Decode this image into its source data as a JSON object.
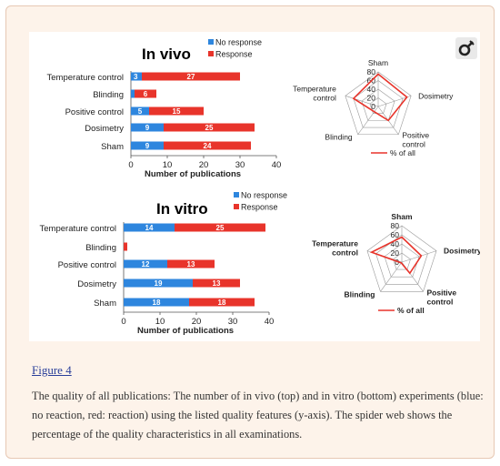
{
  "figure_link": "Figure 4",
  "caption": "The quality of all publications: The number of in vivo (top) and in vitro (bottom) experiments (blue: no reaction, red: reaction) using the listed quality features (y-axis). The spider web shows the percentage of the quality characteristics in all examinations.",
  "icon": "microscope-icon",
  "colors": {
    "no_response": "#2e86de",
    "response": "#e8342b",
    "spider_line": "#e8342b",
    "grid": "#999999"
  },
  "chart_data": [
    {
      "type": "bar",
      "stacked": true,
      "orientation": "horizontal",
      "title": "In vivo",
      "categories": [
        "Temperature control",
        "Blinding",
        "Positive control",
        "Dosimetry",
        "Sham"
      ],
      "series": [
        {
          "name": "No response",
          "values": [
            3,
            1,
            5,
            9,
            9
          ],
          "labels": [
            "3",
            "",
            "5",
            "9",
            "9"
          ]
        },
        {
          "name": "Response",
          "values": [
            27,
            6,
            15,
            25,
            24
          ],
          "labels": [
            "27",
            "6",
            "15",
            "25",
            "24"
          ]
        }
      ],
      "xlabel": "Number of publications",
      "xlim": [
        0,
        40
      ],
      "xticks": [
        "0",
        "10",
        "20",
        "30",
        "40"
      ],
      "legend": "top-right"
    },
    {
      "type": "radar",
      "axes": [
        "Sham",
        "Dosimetry",
        "Positive control",
        "Blinding",
        "Temperature control"
      ],
      "axis_labels": [
        "Sham",
        "Dosimetry",
        "Positive\ncontrol",
        "Blinding",
        "Temperature\ncontrol"
      ],
      "rlim": [
        0,
        80
      ],
      "rticks": [
        "0",
        "20",
        "40",
        "60",
        "80"
      ],
      "series": [
        {
          "name": "% of all",
          "values": [
            75,
            70,
            40,
            15,
            60
          ]
        }
      ],
      "legend": "bottom"
    },
    {
      "type": "bar",
      "stacked": true,
      "orientation": "horizontal",
      "title": "In vitro",
      "categories": [
        "Temperature control",
        "Blinding",
        "Positive control",
        "Dosimetry",
        "Sham"
      ],
      "series": [
        {
          "name": "No response",
          "values": [
            14,
            0,
            12,
            19,
            18
          ],
          "labels": [
            "14",
            "",
            "12",
            "19",
            "18"
          ]
        },
        {
          "name": "Response",
          "values": [
            25,
            1,
            13,
            13,
            18
          ],
          "labels": [
            "25",
            "",
            "13",
            "13",
            "18"
          ]
        }
      ],
      "xlabel": "Number of publications",
      "xlim": [
        0,
        40
      ],
      "xticks": [
        "0",
        "10",
        "20",
        "30",
        "40"
      ],
      "legend": "top-right"
    },
    {
      "type": "radar",
      "axes": [
        "Sham",
        "Dosimetry",
        "Positive control",
        "Blinding",
        "Temperature control"
      ],
      "axis_labels": [
        "Sham",
        "Dosimetry",
        "Positive\ncontrol",
        "Blinding",
        "Temperature\ncontrol"
      ],
      "rlim": [
        0,
        80
      ],
      "rticks": [
        "0",
        "20",
        "40",
        "60",
        "80"
      ],
      "series": [
        {
          "name": "% of all",
          "values": [
            55,
            45,
            30,
            2,
            70
          ]
        }
      ],
      "legend": "bottom"
    }
  ]
}
